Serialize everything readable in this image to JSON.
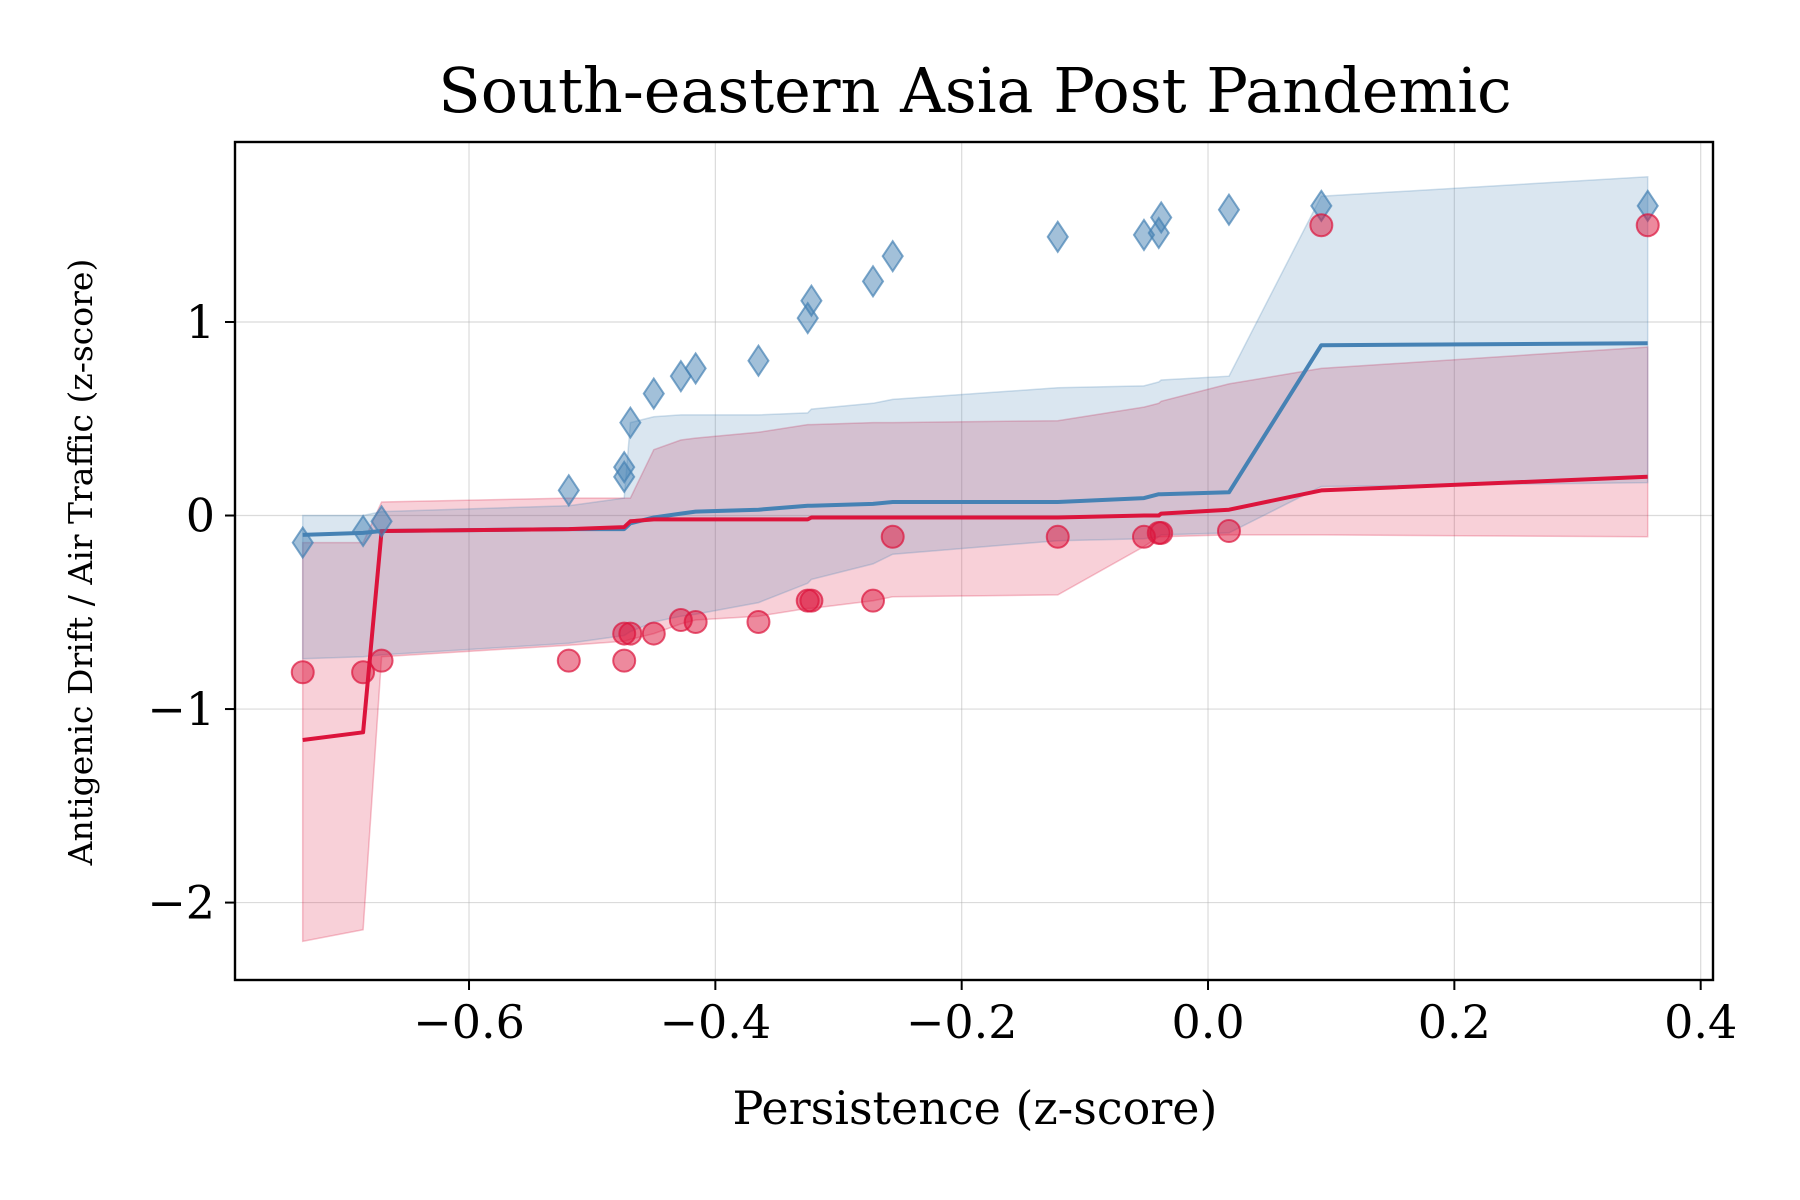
{
  "chart_data": {
    "type": "line",
    "title": "South-eastern Asia Post Pandemic",
    "xlabel": "Persistence (z-score)",
    "ylabel": "Antigenic Drift / Air Traffic (z-score)",
    "xlim": [
      -0.79,
      0.41
    ],
    "ylim": [
      -2.4,
      1.93
    ],
    "xticks": [
      -0.6,
      -0.4,
      -0.2,
      0.0,
      0.2,
      0.4
    ],
    "xtick_labels": [
      "−0.6",
      "−0.4",
      "−0.2",
      "0.0",
      "0.2",
      "0.4"
    ],
    "yticks": [
      -2,
      -1,
      0,
      1
    ],
    "ytick_labels": [
      "−2",
      "−1",
      "0",
      "1"
    ],
    "grid": true,
    "legend": "none",
    "series": [
      {
        "color": "#4682b4",
        "line": {
          "x": [
            -0.735,
            -0.686,
            -0.671,
            -0.519,
            -0.474,
            -0.469,
            -0.45,
            -0.428,
            -0.416,
            -0.365,
            -0.325,
            -0.322,
            -0.272,
            -0.256,
            -0.122,
            -0.052,
            -0.04,
            -0.038,
            0.017,
            0.092,
            0.357
          ],
          "y": [
            -0.1,
            -0.09,
            -0.08,
            -0.07,
            -0.07,
            -0.04,
            -0.01,
            0.01,
            0.02,
            0.03,
            0.05,
            0.05,
            0.06,
            0.07,
            0.07,
            0.09,
            0.11,
            0.11,
            0.12,
            0.88,
            0.89
          ]
        },
        "band": {
          "x": [
            -0.735,
            -0.686,
            -0.671,
            -0.519,
            -0.474,
            -0.469,
            -0.45,
            -0.428,
            -0.416,
            -0.365,
            -0.325,
            -0.322,
            -0.272,
            -0.256,
            -0.122,
            -0.052,
            -0.04,
            -0.038,
            0.017,
            0.092,
            0.357
          ],
          "upper": [
            0.0,
            0.0,
            0.02,
            0.05,
            0.09,
            0.48,
            0.51,
            0.52,
            0.52,
            0.52,
            0.53,
            0.55,
            0.58,
            0.6,
            0.66,
            0.67,
            0.69,
            0.7,
            0.72,
            1.65,
            1.75
          ],
          "lower": [
            -0.74,
            -0.73,
            -0.72,
            -0.66,
            -0.62,
            -0.6,
            -0.55,
            -0.52,
            -0.51,
            -0.45,
            -0.35,
            -0.33,
            -0.25,
            -0.2,
            -0.13,
            -0.12,
            -0.11,
            -0.1,
            -0.09,
            0.15,
            0.17
          ]
        },
        "points": {
          "marker": "diamond",
          "x": [
            -0.735,
            -0.686,
            -0.671,
            -0.519,
            -0.474,
            -0.474,
            -0.469,
            -0.45,
            -0.428,
            -0.416,
            -0.365,
            -0.325,
            -0.322,
            -0.272,
            -0.256,
            -0.122,
            -0.052,
            -0.04,
            -0.038,
            0.017,
            0.092,
            0.357
          ],
          "y": [
            -0.14,
            -0.08,
            -0.03,
            0.13,
            0.2,
            0.25,
            0.48,
            0.63,
            0.72,
            0.76,
            0.8,
            1.02,
            1.11,
            1.21,
            1.34,
            1.44,
            1.45,
            1.46,
            1.54,
            1.58,
            1.6,
            1.6
          ]
        }
      },
      {
        "color": "#dc143c",
        "line": {
          "x": [
            -0.735,
            -0.686,
            -0.671,
            -0.519,
            -0.474,
            -0.469,
            -0.45,
            -0.428,
            -0.416,
            -0.365,
            -0.325,
            -0.322,
            -0.272,
            -0.256,
            -0.122,
            -0.052,
            -0.04,
            -0.038,
            0.017,
            0.092,
            0.357
          ],
          "y": [
            -1.16,
            -1.12,
            -0.08,
            -0.07,
            -0.06,
            -0.03,
            -0.02,
            -0.02,
            -0.02,
            -0.02,
            -0.02,
            -0.01,
            -0.01,
            -0.01,
            -0.01,
            0.0,
            0.0,
            0.01,
            0.03,
            0.13,
            0.2
          ]
        },
        "band": {
          "x": [
            -0.735,
            -0.686,
            -0.671,
            -0.519,
            -0.474,
            -0.469,
            -0.45,
            -0.428,
            -0.416,
            -0.365,
            -0.325,
            -0.322,
            -0.272,
            -0.256,
            -0.122,
            -0.052,
            -0.04,
            -0.038,
            0.017,
            0.092,
            0.357
          ],
          "upper": [
            -0.14,
            -0.14,
            0.07,
            0.09,
            0.09,
            0.09,
            0.34,
            0.39,
            0.4,
            0.43,
            0.47,
            0.47,
            0.48,
            0.48,
            0.49,
            0.56,
            0.58,
            0.59,
            0.68,
            0.76,
            0.87
          ],
          "lower": [
            -2.2,
            -2.14,
            -0.73,
            -0.67,
            -0.65,
            -0.64,
            -0.61,
            -0.56,
            -0.54,
            -0.52,
            -0.48,
            -0.48,
            -0.44,
            -0.42,
            -0.41,
            -0.16,
            -0.11,
            -0.11,
            -0.1,
            -0.1,
            -0.11
          ]
        },
        "points": {
          "marker": "circle",
          "x": [
            -0.735,
            -0.686,
            -0.671,
            -0.519,
            -0.474,
            -0.474,
            -0.469,
            -0.45,
            -0.428,
            -0.416,
            -0.365,
            -0.325,
            -0.322,
            -0.272,
            -0.256,
            -0.122,
            -0.052,
            -0.04,
            -0.038,
            0.017,
            0.092,
            0.357
          ],
          "y": [
            -0.81,
            -0.81,
            -0.75,
            -0.75,
            -0.61,
            -0.75,
            -0.61,
            -0.61,
            -0.54,
            -0.55,
            -0.55,
            -0.44,
            -0.44,
            -0.44,
            -0.11,
            -0.11,
            -0.11,
            -0.09,
            -0.09,
            -0.08,
            1.5,
            1.5
          ]
        }
      }
    ]
  }
}
